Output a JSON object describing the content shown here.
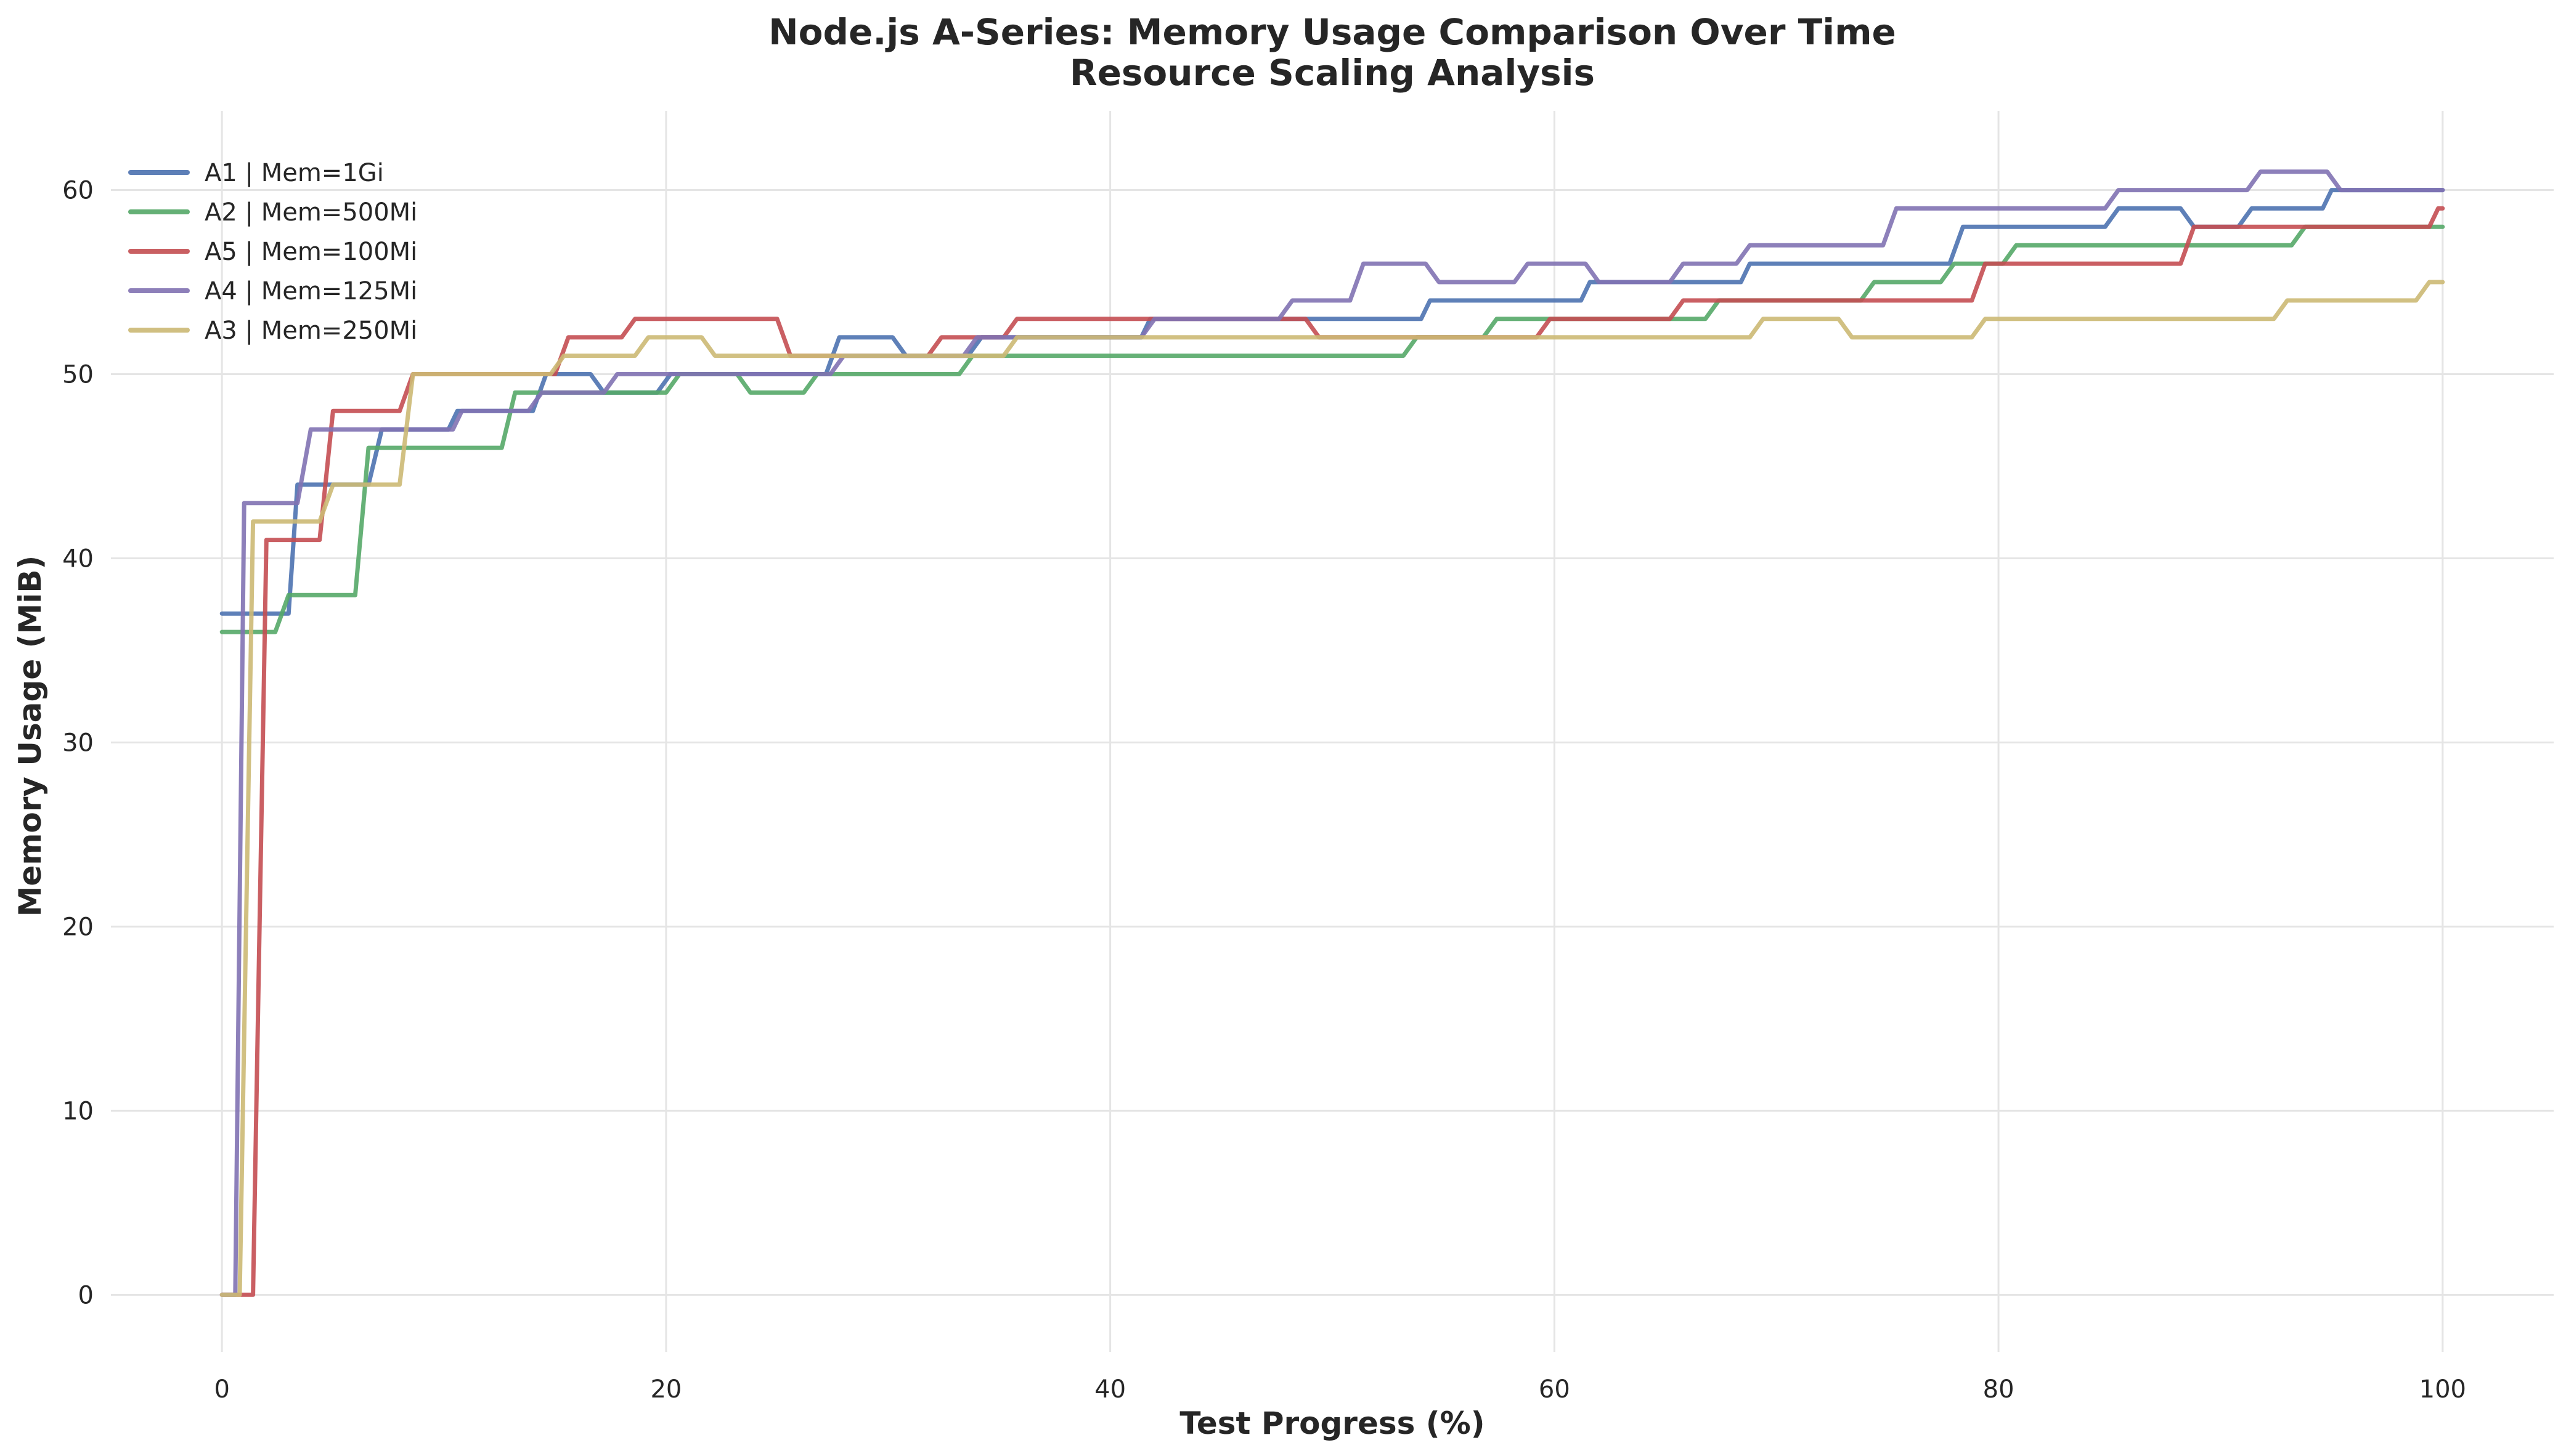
{
  "chart_data": {
    "type": "line",
    "title": "Node.js A-Series: Memory Usage Comparison Over Time",
    "subtitle": "Resource Scaling Analysis",
    "xlabel": "Test Progress (%)",
    "ylabel": "Memory Usage (MiB)",
    "xlim": [
      -5,
      105
    ],
    "ylim": [
      -3.1,
      64.3
    ],
    "xticks": [
      0,
      20,
      40,
      60,
      80,
      100
    ],
    "yticks": [
      0,
      10,
      20,
      30,
      40,
      50,
      60
    ],
    "grid": true,
    "legend_position": "top-left",
    "series": [
      {
        "name": "A1 | Mem=1Gi",
        "color": "#4c72b0",
        "points": [
          [
            0,
            37
          ],
          [
            3,
            37
          ],
          [
            3.4,
            44
          ],
          [
            6.6,
            44
          ],
          [
            7.2,
            47
          ],
          [
            10.2,
            47
          ],
          [
            10.6,
            48
          ],
          [
            14,
            48
          ],
          [
            14.6,
            50
          ],
          [
            16.6,
            50
          ],
          [
            17.2,
            49
          ],
          [
            19.6,
            49
          ],
          [
            20.2,
            50
          ],
          [
            27.2,
            50
          ],
          [
            27.8,
            52
          ],
          [
            30.2,
            52
          ],
          [
            30.8,
            51
          ],
          [
            33.6,
            51
          ],
          [
            34.2,
            52
          ],
          [
            41.4,
            52
          ],
          [
            41.8,
            53
          ],
          [
            54,
            53
          ],
          [
            54.4,
            54
          ],
          [
            61.2,
            54
          ],
          [
            61.6,
            55
          ],
          [
            68.4,
            55
          ],
          [
            68.8,
            56
          ],
          [
            77.8,
            56
          ],
          [
            78.4,
            58
          ],
          [
            84.8,
            58
          ],
          [
            85.4,
            59
          ],
          [
            88.2,
            59
          ],
          [
            88.8,
            58
          ],
          [
            90.8,
            58
          ],
          [
            91.4,
            59
          ],
          [
            94.6,
            59
          ],
          [
            95,
            60
          ],
          [
            100,
            60
          ]
        ]
      },
      {
        "name": "A2 | Mem=500Mi",
        "color": "#55a868",
        "points": [
          [
            0,
            36
          ],
          [
            2.4,
            36
          ],
          [
            3,
            38
          ],
          [
            6,
            38
          ],
          [
            6.6,
            46
          ],
          [
            12.6,
            46
          ],
          [
            13.2,
            49
          ],
          [
            17.6,
            49
          ],
          [
            18.2,
            49
          ],
          [
            20,
            49
          ],
          [
            20.6,
            50
          ],
          [
            23.2,
            50
          ],
          [
            23.8,
            49
          ],
          [
            26.2,
            49
          ],
          [
            26.8,
            50
          ],
          [
            33.2,
            50
          ],
          [
            33.8,
            51
          ],
          [
            53.2,
            51
          ],
          [
            53.8,
            52
          ],
          [
            56.8,
            52
          ],
          [
            57.4,
            53
          ],
          [
            66.8,
            53
          ],
          [
            67.4,
            54
          ],
          [
            73.8,
            54
          ],
          [
            74.4,
            55
          ],
          [
            77.4,
            55
          ],
          [
            78,
            56
          ],
          [
            80.2,
            56
          ],
          [
            80.8,
            57
          ],
          [
            93.2,
            57
          ],
          [
            93.8,
            58
          ],
          [
            100,
            58
          ]
        ]
      },
      {
        "name": "A5 | Mem=100Mi",
        "color": "#c44e52",
        "points": [
          [
            0,
            0
          ],
          [
            1.4,
            0
          ],
          [
            2,
            41
          ],
          [
            4.4,
            41
          ],
          [
            5,
            48
          ],
          [
            8,
            48
          ],
          [
            8.6,
            50
          ],
          [
            15,
            50
          ],
          [
            15.6,
            52
          ],
          [
            18,
            52
          ],
          [
            18.6,
            53
          ],
          [
            25,
            53
          ],
          [
            25.6,
            51
          ],
          [
            31.8,
            51
          ],
          [
            32.4,
            52
          ],
          [
            35.2,
            52
          ],
          [
            35.8,
            53
          ],
          [
            48.8,
            53
          ],
          [
            49.4,
            52
          ],
          [
            59.2,
            52
          ],
          [
            59.8,
            53
          ],
          [
            65.2,
            53
          ],
          [
            65.8,
            54
          ],
          [
            78.8,
            54
          ],
          [
            79.4,
            56
          ],
          [
            88.2,
            56
          ],
          [
            88.8,
            58
          ],
          [
            99.4,
            58
          ],
          [
            99.8,
            59
          ],
          [
            100,
            59
          ]
        ]
      },
      {
        "name": "A4 | Mem=125Mi",
        "color": "#8172b2",
        "points": [
          [
            0,
            0
          ],
          [
            0.6,
            0
          ],
          [
            1,
            43
          ],
          [
            3.4,
            43
          ],
          [
            4,
            47
          ],
          [
            10.4,
            47
          ],
          [
            10.8,
            48
          ],
          [
            13.8,
            48
          ],
          [
            14.4,
            49
          ],
          [
            17.2,
            49
          ],
          [
            17.8,
            50
          ],
          [
            27.4,
            50
          ],
          [
            28,
            51
          ],
          [
            33.4,
            51
          ],
          [
            34,
            52
          ],
          [
            41.4,
            52
          ],
          [
            42,
            53
          ],
          [
            47.6,
            53
          ],
          [
            48.2,
            54
          ],
          [
            50.8,
            54
          ],
          [
            51.4,
            56
          ],
          [
            54.2,
            56
          ],
          [
            54.8,
            55
          ],
          [
            58.2,
            55
          ],
          [
            58.8,
            56
          ],
          [
            61.4,
            56
          ],
          [
            62,
            55
          ],
          [
            65.2,
            55
          ],
          [
            65.8,
            56
          ],
          [
            68.2,
            56
          ],
          [
            68.8,
            57
          ],
          [
            74.8,
            57
          ],
          [
            75.4,
            59
          ],
          [
            84.8,
            59
          ],
          [
            85.4,
            60
          ],
          [
            91.2,
            60
          ],
          [
            91.8,
            61
          ],
          [
            94.8,
            61
          ],
          [
            95.4,
            60
          ],
          [
            100,
            60
          ]
        ]
      },
      {
        "name": "A3 | Mem=250Mi",
        "color": "#ccb974",
        "points": [
          [
            0,
            0
          ],
          [
            0.8,
            0
          ],
          [
            1.4,
            42
          ],
          [
            4.4,
            42
          ],
          [
            5,
            44
          ],
          [
            8,
            44
          ],
          [
            8.6,
            50
          ],
          [
            14.8,
            50
          ],
          [
            15.4,
            51
          ],
          [
            18.6,
            51
          ],
          [
            19.2,
            52
          ],
          [
            21.6,
            52
          ],
          [
            22.2,
            51
          ],
          [
            35.2,
            51
          ],
          [
            35.8,
            52
          ],
          [
            68.8,
            52
          ],
          [
            69.4,
            53
          ],
          [
            72.8,
            53
          ],
          [
            73.4,
            52
          ],
          [
            78.8,
            52
          ],
          [
            79.4,
            53
          ],
          [
            92.4,
            53
          ],
          [
            93,
            54
          ],
          [
            98.8,
            54
          ],
          [
            99.4,
            55
          ],
          [
            100,
            55
          ]
        ]
      }
    ]
  }
}
